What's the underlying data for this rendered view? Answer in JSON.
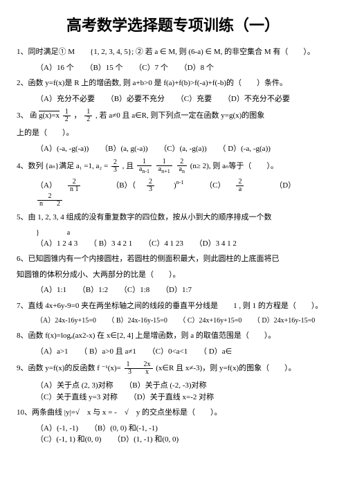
{
  "title": "高考数学选择题专项训练（一）",
  "q1": {
    "text": "1、同时满足① M　　{1, 2, 3, 4, 5}; ② 若 a ∈ M, 则 (6-a) ∈ M, 的非空集合 M 有（　　）。",
    "optA": "（A）16 个",
    "optB": "（B）15 个",
    "optC": "（C）7 个",
    "optD": "（D）8 个"
  },
  "q2": {
    "text": "2、函数 y=f(x)是 R 上的增函数, 则 a+b>0 是 f(a)+f(b)>f(-a)+f(-b)的（　　）条件。",
    "optA": "（A）充分不必要",
    "optB": "（B）必要不充分",
    "optC": "（C）充要",
    "optD": "（D）不充分不必要"
  },
  "q3": {
    "line1a": "3、",
    "line1b": "函",
    "gx": "g(x)=x",
    "frac1n": "1",
    "frac1d": "2",
    "mid": "，",
    "frac2n": "1",
    "frac2d": "2",
    "tail": ", 若 a≠0 且 a∈R, 则下列点一定在函数 y=g(x)的图象",
    "line2": "上的是（　　）。",
    "optA": "（A）(-a, -g(-a))",
    "optB": "（B）(a, g(-a))",
    "optC": "（C）(a, -g(a))",
    "optD": "（ D）(-a, -g(a))"
  },
  "q4": {
    "text1": "4、数列 {aₙ}满足 a₁ =1, a₂ =",
    "frac1n": "2",
    "frac1d": "3",
    "mid": ", 且",
    "f2n": "1",
    "f2d": "a",
    "sub2": "n-1",
    "f3n": "1",
    "f3d": "a",
    "sub3": "n+1",
    "f4n": "2",
    "f4d": "a",
    "sub4": "n",
    "tail": " (n≥ 2), 则 aₙ等于（　　）。",
    "optA": "（A）",
    "fAn": "2",
    "fAd": "n  1",
    "optB": "（B）（",
    "fBn": "2",
    "fBd": "3",
    "optBsup": "n-1",
    "optC": "（C）",
    "fCn": "2",
    "fCd": "a",
    "optD": "（D）",
    "fDn": "2",
    "fDd": "n　　2"
  },
  "q5": {
    "text1": "5、由 1, 2, 3, 4 组成的没有重复数字的四位数，按从小到大的顺序排成一个数",
    "text2": "}　　　　a",
    "optA": "（A）1 2 4 3",
    "optB": "（ B）3 4 2 1",
    "optC": "（C）4 1 23",
    "optD": "（D）3 4 1 2"
  },
  "q6": {
    "text1": "6、已知圆锥内有一个内接圆柱，若圆柱的侧面积最大，则此圆柱的上底面将已",
    "text2": "知圆锥的体积分成小、大两部分的比是（　　）。",
    "optA": "（A）1:1",
    "optB": "（B）1:2",
    "optC": "（C）1:8",
    "optD": "（D）1:7"
  },
  "q7": {
    "text1": "7、直线 4x+6y-9=0 夹在两坐标轴之间的线段的垂直平分线是　　1 , 则 1  的方程是（　　）。",
    "optA": "（A）24x-16y+15=0",
    "optB": "（ B）24x-16y-15=0",
    "optC": "（ C）24x+16y+15=0",
    "optD": "（ D）24x+16y-15=0"
  },
  "q8": {
    "text": "8、函数 f(x)=logₐ(ax2-x) 在 x∈[2, 4] 上是增函数，则 a 的取值范围是（　　）。",
    "optA": "（A）a>1",
    "optB": "（ B）a>0 且 a≠1",
    "optC": "（C）0<a<1",
    "optD": "（ D）a∈"
  },
  "q9": {
    "text1": "9、函数 y=f(x)的反函数 f ⁻¹(x)=",
    "fn": "1　　2x",
    "fd": "3　　x",
    "text2": " (x∈R 且 x≠-3)，则 y=f(x)的图象（　　）。",
    "optA": "（A）关于点 (2, 3)对称",
    "optB": "（B）关于点 (-2, -3)对称",
    "optC": "（C）关于直线 y=3 对称",
    "optD": "（D）关于直线 x=-2 对称"
  },
  "q10": {
    "text": "10、两条曲线 |y|=√　x 与 x = -　√　y 的交点坐标是（　　）。",
    "optA": "（A）(-1, -1)",
    "optB": "（B）(0, 0) 和(-1, -1)",
    "optC": "（C）(-1, 1) 和(0, 0)",
    "optD": "（D）(1, -1) 和(0, 0)"
  }
}
